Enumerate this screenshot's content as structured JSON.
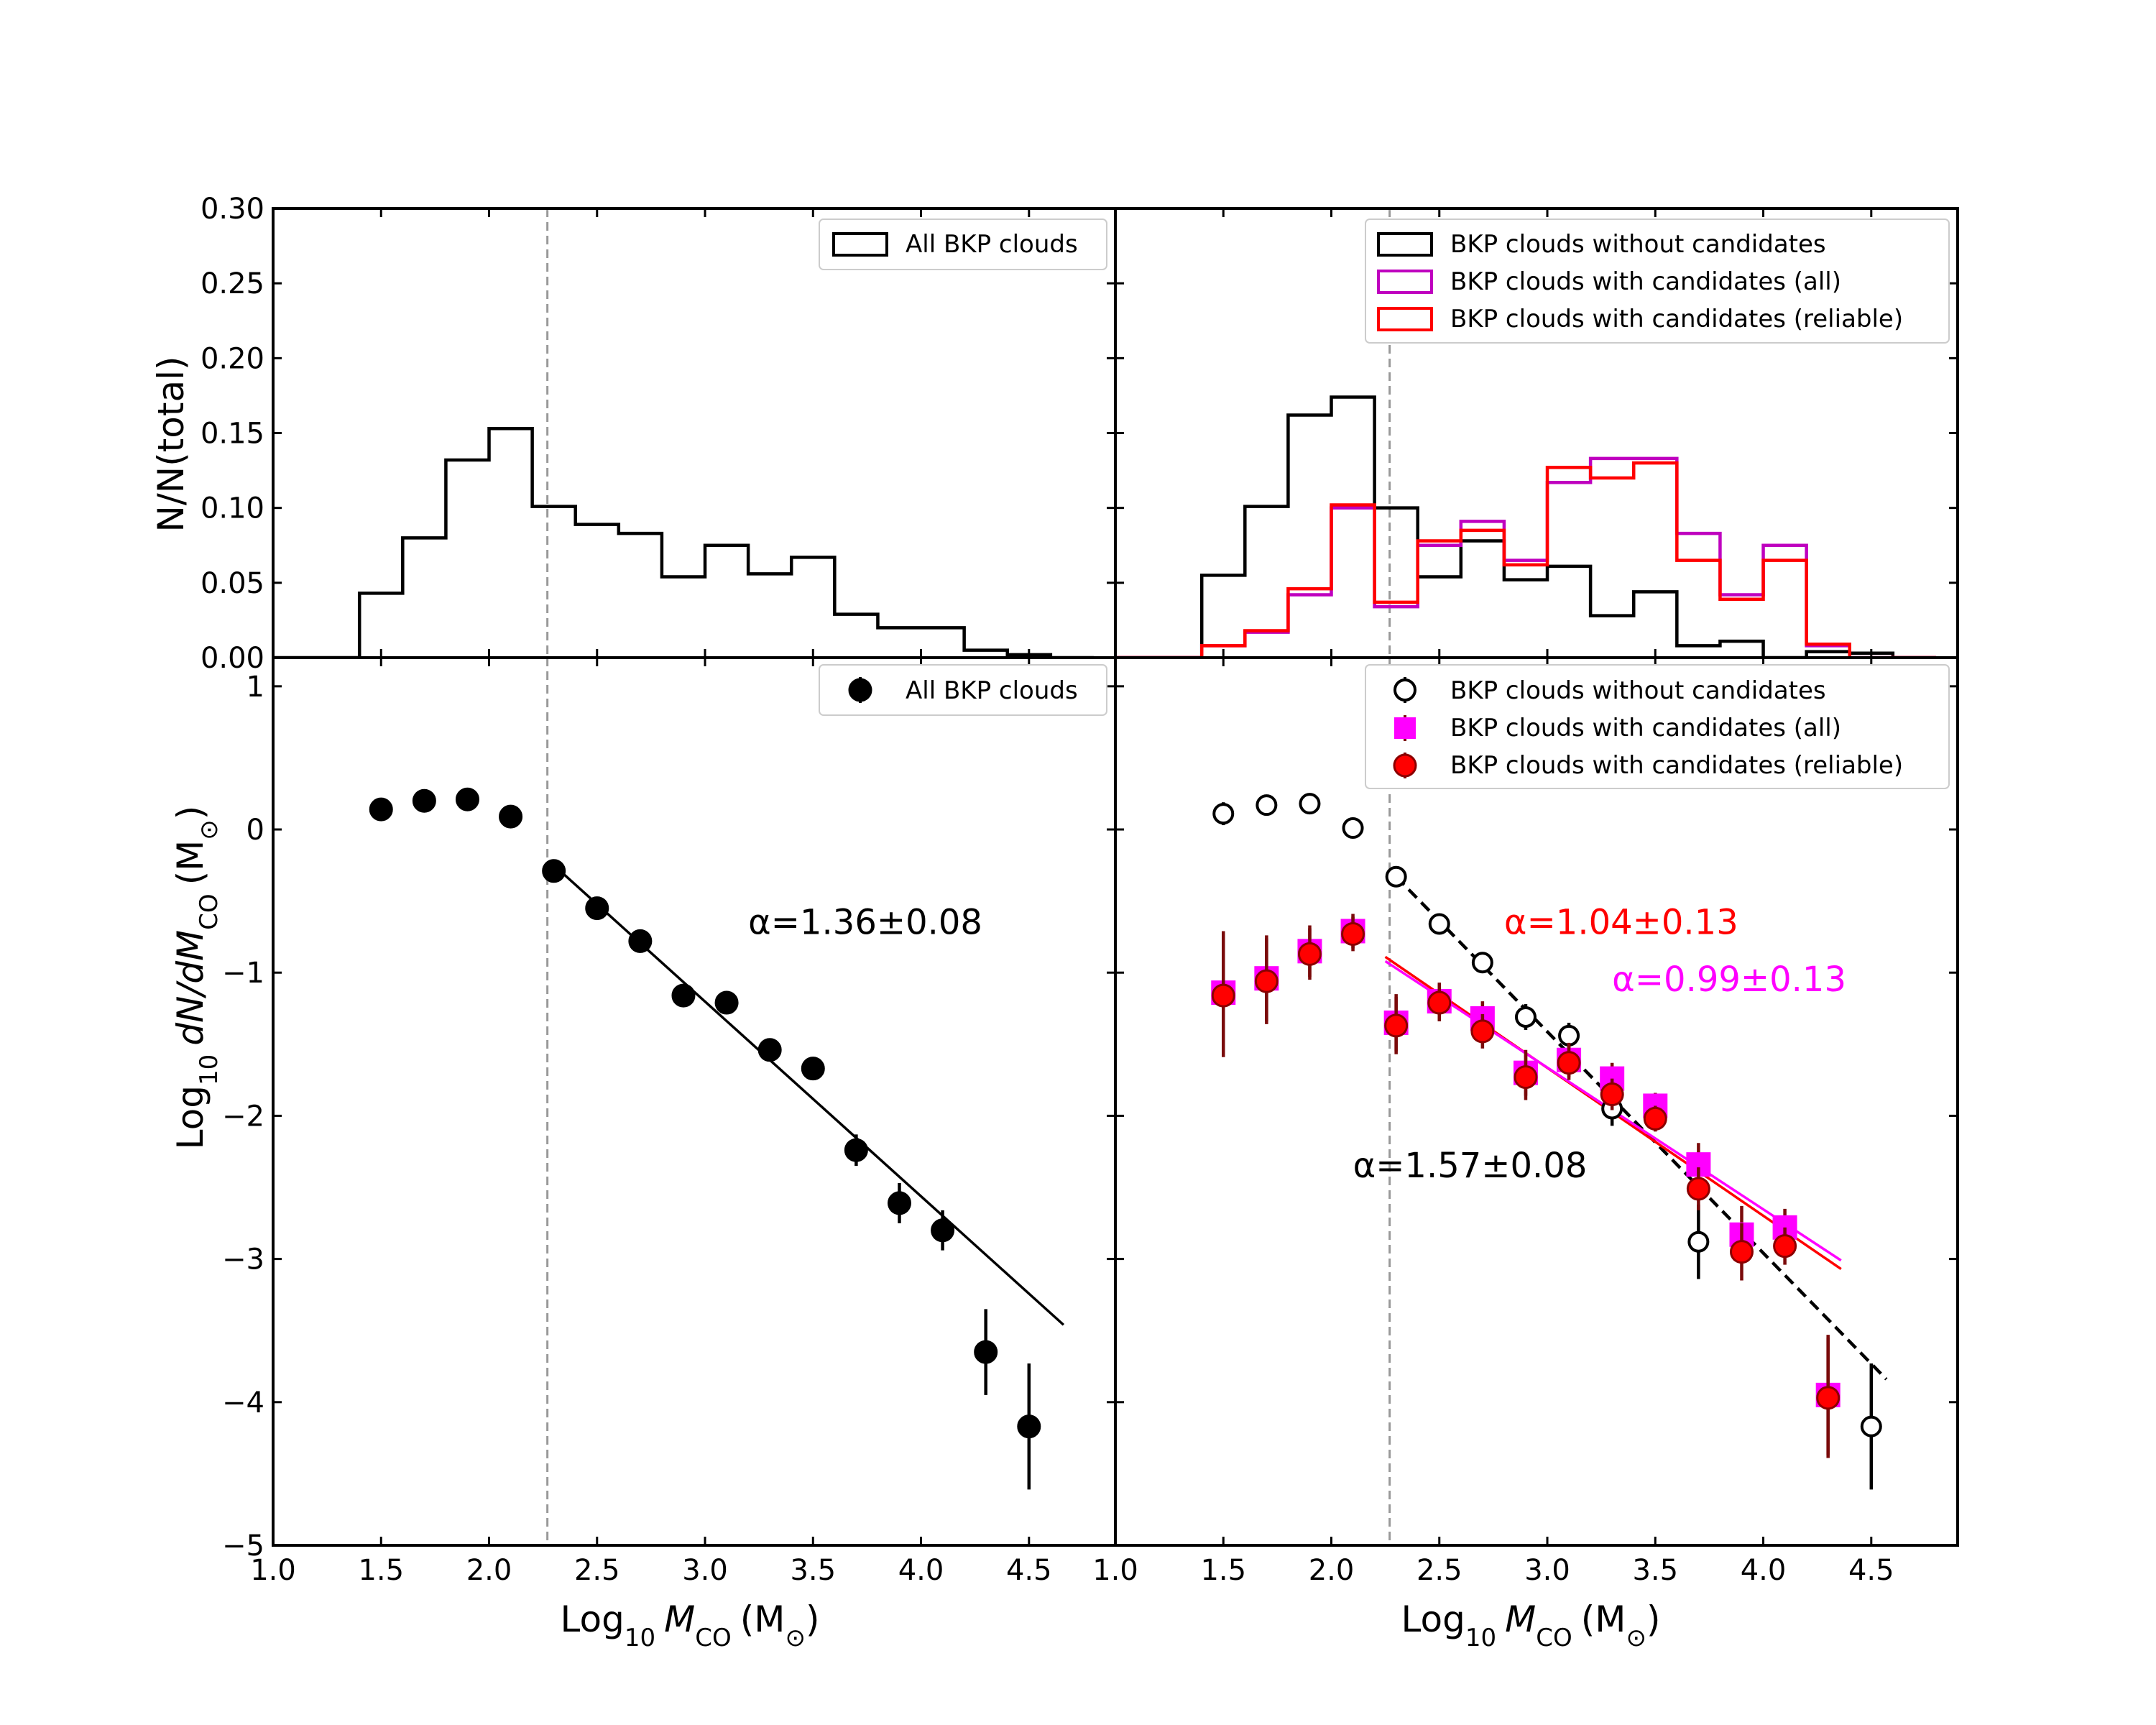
{
  "chart_data": [
    {
      "id": "tl",
      "type": "histogram",
      "ylabel": "N/N(total)",
      "xlim": [
        1.0,
        4.9
      ],
      "ylim": [
        0.0,
        0.3
      ],
      "xticks": [
        1.0,
        1.5,
        2.0,
        2.5,
        3.0,
        3.5,
        4.0,
        4.5
      ],
      "yticks": [
        0.0,
        0.05,
        0.1,
        0.15,
        0.2,
        0.25,
        0.3
      ],
      "ytick_labels": [
        "0.00",
        "0.05",
        "0.10",
        "0.15",
        "0.20",
        "0.25",
        "0.30"
      ],
      "vline": 2.27,
      "bin_edges": [
        1.0,
        1.2,
        1.4,
        1.6,
        1.8,
        2.0,
        2.2,
        2.4,
        2.6,
        2.8,
        3.0,
        3.2,
        3.4,
        3.6,
        3.8,
        4.0,
        4.2,
        4.4,
        4.6,
        4.8
      ],
      "series": [
        {
          "name": "All BKP clouds",
          "color": "#000000",
          "values": [
            0.0,
            0.0,
            0.043,
            0.08,
            0.132,
            0.153,
            0.101,
            0.089,
            0.083,
            0.054,
            0.075,
            0.056,
            0.067,
            0.029,
            0.02,
            0.02,
            0.005,
            0.002,
            0.0
          ]
        }
      ],
      "legend": {
        "position": "upper right",
        "entries": [
          "All BKP clouds"
        ]
      }
    },
    {
      "id": "tr",
      "type": "histogram",
      "xlim": [
        1.0,
        4.9
      ],
      "ylim": [
        0.0,
        0.3
      ],
      "xticks": [
        1.0,
        1.5,
        2.0,
        2.5,
        3.0,
        3.5,
        4.0,
        4.5
      ],
      "yticks": [
        0.0,
        0.05,
        0.1,
        0.15,
        0.2,
        0.25,
        0.3
      ],
      "vline": 2.27,
      "bin_edges": [
        1.0,
        1.2,
        1.4,
        1.6,
        1.8,
        2.0,
        2.2,
        2.4,
        2.6,
        2.8,
        3.0,
        3.2,
        3.4,
        3.6,
        3.8,
        4.0,
        4.2,
        4.4,
        4.6,
        4.8
      ],
      "series": [
        {
          "name": "BKP clouds without candidates",
          "color": "#000000",
          "values": [
            0.0,
            0.0,
            0.055,
            0.101,
            0.162,
            0.174,
            0.1,
            0.054,
            0.078,
            0.052,
            0.061,
            0.028,
            0.044,
            0.008,
            0.011,
            0.0,
            0.004,
            0.003,
            0.0
          ]
        },
        {
          "name": "BKP clouds with candidates (all)",
          "color": "#bf00bf",
          "values": [
            0.0,
            0.0,
            0.008,
            0.017,
            0.042,
            0.1,
            0.034,
            0.075,
            0.091,
            0.065,
            0.117,
            0.133,
            0.133,
            0.083,
            0.042,
            0.075,
            0.008,
            0.0,
            0.0
          ]
        },
        {
          "name": "BKP clouds with candidates (reliable)",
          "color": "#ff0000",
          "values": [
            0.0,
            0.0,
            0.008,
            0.018,
            0.046,
            0.102,
            0.037,
            0.078,
            0.085,
            0.062,
            0.127,
            0.12,
            0.13,
            0.065,
            0.039,
            0.065,
            0.009,
            0.0,
            0.0
          ]
        }
      ],
      "legend": {
        "position": "upper right",
        "entries": [
          "BKP clouds without candidates",
          "BKP clouds with candidates (all)",
          "BKP clouds with candidates (reliable)"
        ]
      }
    },
    {
      "id": "bl",
      "type": "scatter",
      "xlabel_main": "Log",
      "xlabel_sub": "10",
      "xlabel_var": "M",
      "xlabel_var_sub": "CO",
      "xlabel_unit": "(M",
      "xlabel_unit_sub": "⊙",
      "xlabel_close": ")",
      "ylabel_main": "Log",
      "ylabel_sub": "10",
      "ylabel_expr": "dN/dM",
      "ylabel_expr_sub": "CO",
      "ylabel_unit": "(M",
      "ylabel_unit_sub": "⊙",
      "ylabel_close": ")",
      "xlim": [
        1.0,
        4.9
      ],
      "ylim": [
        -5,
        1.2
      ],
      "xticks": [
        1.0,
        1.5,
        2.0,
        2.5,
        3.0,
        3.5,
        4.0,
        4.5
      ],
      "xtick_labels": [
        "1.0",
        "1.5",
        "2.0",
        "2.5",
        "3.0",
        "3.5",
        "4.0",
        "4.5"
      ],
      "yticks": [
        -5,
        -4,
        -3,
        -2,
        -1,
        0,
        1
      ],
      "ytick_labels": [
        "−5",
        "−4",
        "−3",
        "−2",
        "−1",
        "0",
        "1"
      ],
      "vline": 2.27,
      "series": [
        {
          "name": "All BKP clouds",
          "marker": "circle",
          "fill": "#000000",
          "edge": "#000000",
          "errcolor": "#000000",
          "x": [
            1.5,
            1.7,
            1.9,
            2.1,
            2.3,
            2.5,
            2.7,
            2.9,
            3.1,
            3.3,
            3.5,
            3.7,
            3.9,
            4.1,
            4.3,
            4.5
          ],
          "y": [
            0.14,
            0.2,
            0.21,
            0.09,
            -0.29,
            -0.55,
            -0.78,
            -1.16,
            -1.21,
            -1.54,
            -1.67,
            -2.24,
            -2.61,
            -2.8,
            -3.65,
            -4.17
          ],
          "err": [
            0.07,
            0.05,
            0.05,
            0.06,
            0.06,
            0.05,
            0.05,
            0.08,
            0.07,
            0.08,
            0.07,
            0.11,
            0.14,
            0.14,
            0.3,
            0.44
          ]
        }
      ],
      "fits": [
        {
          "x": [
            2.3,
            4.66
          ],
          "y": [
            -0.25,
            -3.46
          ],
          "color": "#000000",
          "dash": false
        }
      ],
      "annotations": [
        {
          "label": "α=1.36±0.08",
          "x": 3.2,
          "y": -0.73,
          "color": "#000000"
        }
      ],
      "legend": {
        "position": "upper right",
        "entries": [
          "All BKP clouds"
        ]
      }
    },
    {
      "id": "br",
      "type": "scatter",
      "xlabel_main": "Log",
      "xlabel_sub": "10",
      "xlabel_var": "M",
      "xlabel_var_sub": "CO",
      "xlabel_unit": "(M",
      "xlabel_unit_sub": "⊙",
      "xlabel_close": ")",
      "xlim": [
        1.0,
        4.9
      ],
      "ylim": [
        -5,
        1.2
      ],
      "xticks": [
        1.0,
        1.5,
        2.0,
        2.5,
        3.0,
        3.5,
        4.0,
        4.5
      ],
      "xtick_labels": [
        "1.0",
        "1.5",
        "2.0",
        "2.5",
        "3.0",
        "3.5",
        "4.0",
        "4.5"
      ],
      "yticks": [
        -5,
        -4,
        -3,
        -2,
        -1,
        0,
        1
      ],
      "vline": 2.27,
      "series": [
        {
          "name": "BKP clouds without candidates",
          "marker": "circle",
          "fill": "#ffffff",
          "edge": "#000000",
          "errcolor": "#000000",
          "x": [
            1.5,
            1.7,
            1.9,
            2.1,
            2.3,
            2.5,
            2.7,
            2.9,
            3.1,
            3.3,
            3.7,
            4.5
          ],
          "y": [
            0.11,
            0.17,
            0.18,
            0.01,
            -0.33,
            -0.66,
            -0.93,
            -1.31,
            -1.44,
            -1.95,
            -2.88,
            -4.17
          ],
          "err": [
            0.08,
            0.05,
            0.05,
            0.05,
            0.06,
            0.06,
            0.07,
            0.09,
            0.09,
            0.12,
            0.26,
            0.44
          ]
        },
        {
          "name": "BKP clouds with candidates (all)",
          "marker": "square",
          "fill": "#ff00ff",
          "edge": "#ff00ff",
          "errcolor": "#7a0a0a",
          "x": [
            1.5,
            1.7,
            1.9,
            2.1,
            2.3,
            2.5,
            2.7,
            2.9,
            3.1,
            3.3,
            3.5,
            3.7,
            3.9,
            4.1,
            4.3
          ],
          "y": [
            -1.14,
            -1.04,
            -0.85,
            -0.71,
            -1.35,
            -1.2,
            -1.32,
            -1.7,
            -1.61,
            -1.74,
            -1.93,
            -2.34,
            -2.83,
            -2.78,
            -3.95
          ],
          "err": [
            0.43,
            0.3,
            0.18,
            0.12,
            0.2,
            0.13,
            0.12,
            0.16,
            0.12,
            0.11,
            0.09,
            0.15,
            0.2,
            0.13,
            0.42
          ]
        },
        {
          "name": "BKP clouds with candidates (reliable)",
          "marker": "circle",
          "fill": "#ff0000",
          "edge": "#8b0000",
          "errcolor": "#7a0a0a",
          "x": [
            1.5,
            1.7,
            1.9,
            2.1,
            2.3,
            2.5,
            2.7,
            2.9,
            3.1,
            3.3,
            3.5,
            3.7,
            3.9,
            4.1,
            4.3
          ],
          "y": [
            -1.16,
            -1.06,
            -0.87,
            -0.73,
            -1.37,
            -1.21,
            -1.41,
            -1.73,
            -1.63,
            -1.85,
            -2.02,
            -2.51,
            -2.95,
            -2.91,
            -3.97
          ],
          "err": [
            0.43,
            0.3,
            0.18,
            0.12,
            0.2,
            0.13,
            0.12,
            0.16,
            0.12,
            0.11,
            0.09,
            0.15,
            0.2,
            0.13,
            0.42
          ]
        }
      ],
      "fits": [
        {
          "x": [
            2.3,
            4.57
          ],
          "y": [
            -0.33,
            -3.84
          ],
          "color": "#000000",
          "dash": true
        },
        {
          "x": [
            2.25,
            4.36
          ],
          "y": [
            -0.89,
            -3.07
          ],
          "color": "#ff0000",
          "dash": false
        },
        {
          "x": [
            2.25,
            4.36
          ],
          "y": [
            -0.92,
            -3.01
          ],
          "color": "#ff00ff",
          "dash": false
        }
      ],
      "annotations": [
        {
          "label": "α=1.04±0.13",
          "x": 2.8,
          "y": -0.73,
          "color": "#ff0000"
        },
        {
          "label": "α=0.99±0.13",
          "x": 3.3,
          "y": -1.13,
          "color": "#ff00ff"
        },
        {
          "label": "α=1.57±0.08",
          "x": 2.1,
          "y": -2.43,
          "color": "#000000"
        }
      ],
      "legend": {
        "position": "upper right",
        "entries": [
          "BKP clouds without candidates",
          "BKP clouds with candidates (all)",
          "BKP clouds with candidates (reliable)"
        ]
      }
    }
  ]
}
